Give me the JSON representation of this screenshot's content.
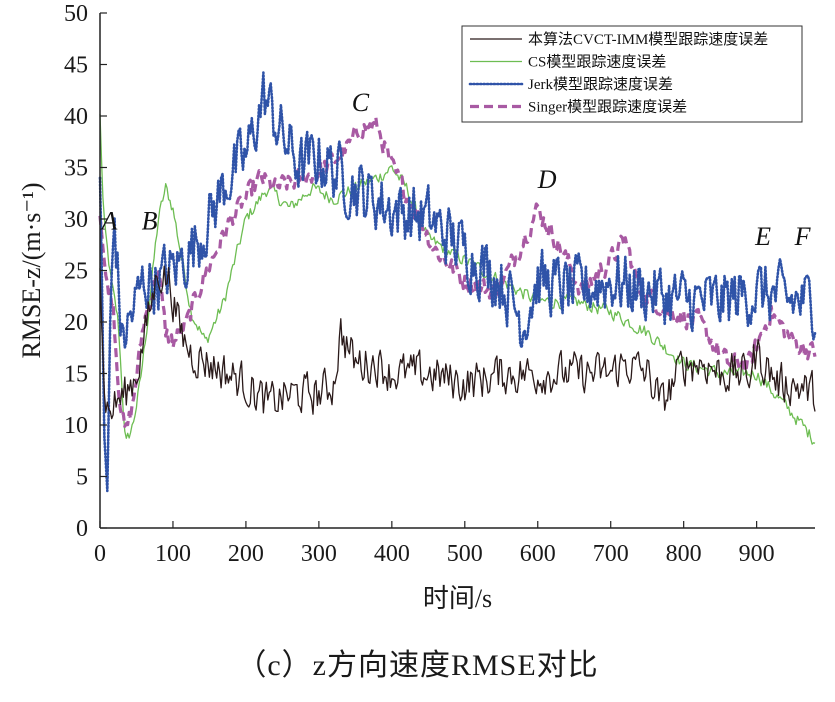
{
  "chart_data": {
    "type": "line",
    "xlabel": "时间/s",
    "ylabel": "RMSE-z/(m·s⁻¹)",
    "xlim": [
      0,
      980
    ],
    "ylim": [
      0,
      50
    ],
    "xticks": [
      0,
      100,
      200,
      300,
      400,
      500,
      600,
      700,
      800,
      900
    ],
    "yticks": [
      0,
      5,
      10,
      15,
      20,
      25,
      30,
      35,
      40,
      45,
      50
    ],
    "legend_position": "top-right",
    "series": [
      {
        "name": "本算法CVCT-IMM模型跟踪速度误差",
        "color": "#2a1a1a",
        "style": "solid",
        "width": 1.3,
        "noise": 1.8,
        "x": [
          0,
          5,
          12,
          20,
          35,
          50,
          65,
          80,
          95,
          110,
          125,
          150,
          200,
          230,
          260,
          300,
          320,
          330,
          350,
          380,
          400,
          450,
          500,
          550,
          580,
          600,
          650,
          700,
          720,
          750,
          770,
          800,
          830,
          850,
          870,
          890,
          900,
          930,
          950,
          980
        ],
        "y": [
          26,
          14,
          11,
          12,
          13,
          15,
          20,
          25,
          24,
          19,
          17,
          16,
          14,
          12,
          13,
          13,
          14,
          19,
          16,
          16,
          15,
          15,
          14,
          15,
          15,
          15,
          15,
          15,
          16,
          15,
          12,
          16,
          16,
          15,
          15,
          15,
          17,
          14,
          14,
          13
        ]
      },
      {
        "name": "CS模型跟踪速度误差",
        "color": "#6dbd52",
        "style": "solid",
        "width": 1.3,
        "noise": 0.6,
        "x": [
          0,
          5,
          15,
          25,
          35,
          45,
          55,
          65,
          80,
          90,
          100,
          110,
          125,
          145,
          170,
          200,
          230,
          260,
          290,
          320,
          350,
          380,
          400,
          420,
          450,
          500,
          550,
          600,
          650,
          700,
          750,
          800,
          850,
          900,
          950,
          980
        ],
        "y": [
          40,
          30,
          24,
          20,
          8,
          10,
          14,
          20,
          30,
          33,
          31,
          27,
          21,
          18,
          22,
          30,
          33,
          31,
          33,
          32,
          33,
          34,
          35,
          33,
          28,
          26,
          24,
          22,
          22,
          21,
          19,
          16,
          15,
          15,
          11,
          8.5
        ]
      },
      {
        "name": "Jerk模型跟踪速度误差",
        "color": "#2f53a8",
        "style": "dotted",
        "width": 2.6,
        "noise": 2.8,
        "x": [
          0,
          3,
          6,
          10,
          15,
          20,
          30,
          40,
          50,
          60,
          80,
          100,
          125,
          150,
          175,
          200,
          225,
          250,
          275,
          300,
          350,
          400,
          450,
          500,
          550,
          580,
          600,
          650,
          700,
          750,
          800,
          850,
          900,
          950,
          980
        ],
        "y": [
          35,
          20,
          8,
          4,
          22,
          30,
          18,
          20,
          22,
          24,
          24,
          25,
          27,
          30,
          34,
          36,
          42,
          38,
          35,
          36,
          33,
          31,
          30,
          27,
          24,
          20,
          24,
          23,
          24,
          23,
          22,
          22,
          23,
          22,
          22
        ]
      },
      {
        "name": "Singer模型跟踪速度误差",
        "color": "#a85aa3",
        "style": "dashed",
        "width": 3.2,
        "noise": 0.9,
        "x": [
          0,
          8,
          18,
          25,
          35,
          45,
          60,
          80,
          90,
          100,
          120,
          140,
          160,
          180,
          200,
          220,
          240,
          280,
          310,
          340,
          360,
          380,
          400,
          430,
          460,
          500,
          540,
          560,
          600,
          640,
          660,
          700,
          720,
          740,
          780,
          820,
          860,
          890,
          920,
          950,
          980
        ],
        "y": [
          31,
          24,
          22,
          14,
          9,
          12,
          20,
          25,
          19,
          18,
          20,
          24,
          27,
          30,
          32,
          34,
          33,
          34,
          35,
          37,
          39,
          39,
          35,
          31,
          27,
          24,
          23,
          25,
          31,
          26,
          23,
          26,
          28,
          23,
          21,
          20,
          16,
          16,
          21,
          18,
          17
        ]
      }
    ],
    "annotations": [
      {
        "text": "A",
        "x": 2,
        "y": 29
      },
      {
        "text": "B",
        "x": 57,
        "y": 29
      },
      {
        "text": "C",
        "x": 345,
        "y": 40.5
      },
      {
        "text": "D",
        "x": 600,
        "y": 33
      },
      {
        "text": "E",
        "x": 898,
        "y": 27.5
      },
      {
        "text": "F",
        "x": 952,
        "y": 27.5
      }
    ]
  },
  "caption": "（c）z方向速度RMSE对比"
}
